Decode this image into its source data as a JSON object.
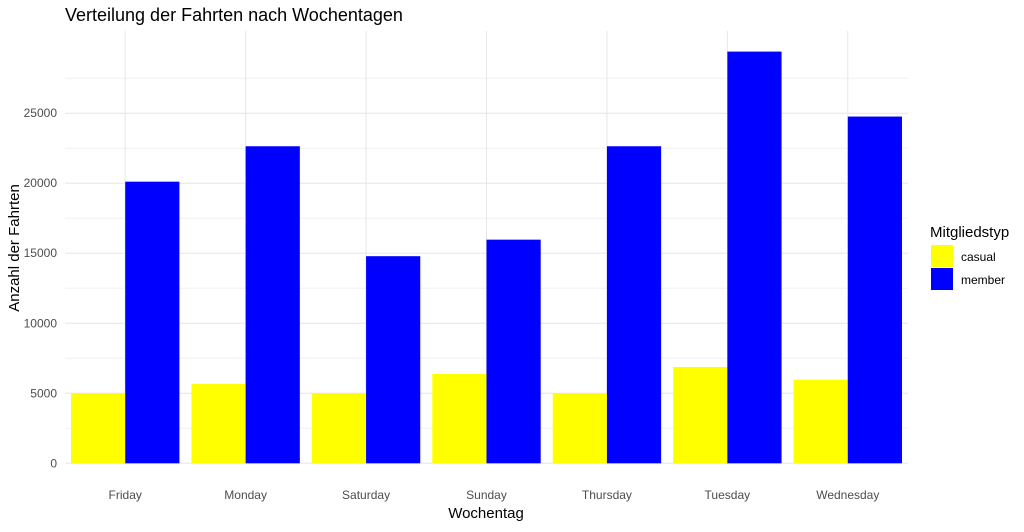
{
  "chart_data": {
    "type": "bar",
    "title": "Verteilung der Fahrten nach Wochentagen",
    "xlabel": "Wochentag",
    "ylabel": "Anzahl der Fahrten",
    "categories": [
      "Friday",
      "Monday",
      "Saturday",
      "Sunday",
      "Thursday",
      "Tuesday",
      "Wednesday"
    ],
    "series": [
      {
        "name": "casual",
        "color": "#FFFF00",
        "values": [
          5000,
          5660,
          5000,
          6380,
          5000,
          6880,
          5970
        ]
      },
      {
        "name": "member",
        "color": "#0000FF",
        "values": [
          20110,
          22640,
          14790,
          15970,
          22640,
          29400,
          24760
        ]
      }
    ],
    "yticks": [
      0,
      5000,
      10000,
      15000,
      20000,
      25000
    ],
    "ylim": [
      0,
      30870
    ],
    "grid": true,
    "legend": {
      "title": "Mitgliedstyp",
      "position": "right"
    }
  }
}
